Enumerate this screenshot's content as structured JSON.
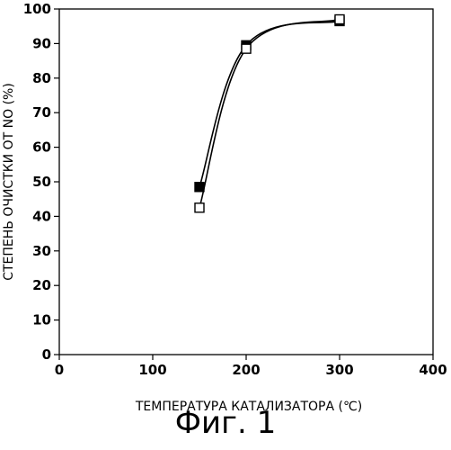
{
  "figure": {
    "caption": "Фиг. 1"
  },
  "chart_data": {
    "type": "line",
    "xlabel": "ТЕМПЕРАТУРА КАТАЛИЗАТОРА (℃)",
    "ylabel": "СТЕПЕНЬ ОЧИСТКИ ОТ NO (%)",
    "xlim": [
      0,
      400
    ],
    "ylim": [
      0,
      100
    ],
    "x_ticks": [
      0,
      100,
      200,
      300,
      400
    ],
    "y_ticks": [
      0,
      10,
      20,
      30,
      40,
      50,
      60,
      70,
      80,
      90,
      100
    ],
    "grid": false,
    "series": [
      {
        "marker": "filled-square",
        "color": "#000000",
        "x": [
          150,
          200,
          300
        ],
        "y": [
          48.5,
          89.5,
          96.5
        ]
      },
      {
        "marker": "open-square",
        "color": "#000000",
        "x": [
          150,
          200,
          300
        ],
        "y": [
          42.5,
          88.5,
          97.0
        ]
      }
    ]
  }
}
